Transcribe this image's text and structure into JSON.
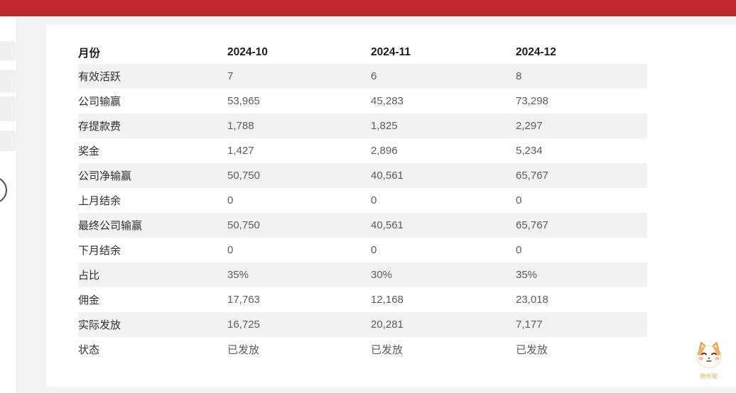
{
  "theme": {
    "topbar_color": "#c3282f",
    "topbar_edge_color": "#a93136",
    "background_color": "#f5f4f5",
    "card_color": "#ffffff",
    "stripe_color": "#f2f2f2",
    "label_color": "#2f2f2f",
    "value_color": "#5c5c5c",
    "mascot_orange": "#eda24f"
  },
  "table": {
    "header": {
      "label": "月份",
      "columns": [
        "2024-10",
        "2024-11",
        "2024-12"
      ]
    },
    "rows": [
      {
        "label": "有效活跃",
        "values": [
          "7",
          "6",
          "8"
        ]
      },
      {
        "label": "公司输赢",
        "values": [
          "53,965",
          "45,283",
          "73,298"
        ]
      },
      {
        "label": "存提款费",
        "values": [
          "1,788",
          "1,825",
          "2,297"
        ]
      },
      {
        "label": "奖金",
        "values": [
          "1,427",
          "2,896",
          "5,234"
        ]
      },
      {
        "label": "公司净输赢",
        "values": [
          "50,750",
          "40,561",
          "65,767"
        ]
      },
      {
        "label": "上月结余",
        "values": [
          "0",
          "0",
          "0"
        ]
      },
      {
        "label": "最终公司输赢",
        "values": [
          "50,750",
          "40,561",
          "65,767"
        ]
      },
      {
        "label": "下月结余",
        "values": [
          "0",
          "0",
          "0"
        ]
      },
      {
        "label": "占比",
        "values": [
          "35%",
          "30%",
          "35%"
        ]
      },
      {
        "label": "佣金",
        "values": [
          "17,763",
          "12,168",
          "23,018"
        ]
      },
      {
        "label": "实际发放",
        "values": [
          "16,725",
          "20,281",
          "7,177"
        ]
      },
      {
        "label": "状态",
        "values": [
          "已发放",
          "已发放",
          "已发放"
        ]
      }
    ]
  },
  "mascot": {
    "caption": "陪伴呢"
  }
}
